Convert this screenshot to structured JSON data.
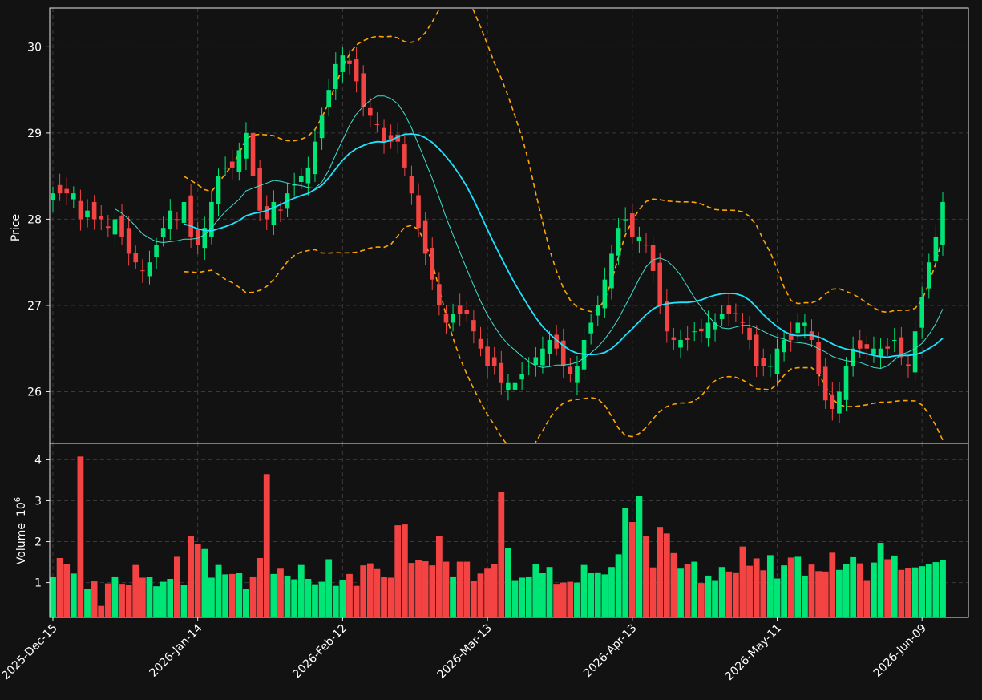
{
  "chart_data": {
    "type": "candlestick",
    "colors": {
      "background": "#121212",
      "up": "#00e676",
      "down": "#f44343",
      "ma_fast": "#40e0d0",
      "ma_slow": "#1ee3ff",
      "bollinger": "#ffa500",
      "grid": "#3a3a3a"
    },
    "price_panel": {
      "ylabel": "Price",
      "ylim": [
        25.4,
        30.45
      ],
      "yticks": [
        26,
        27,
        28,
        29,
        30
      ],
      "ytick_labels": [
        "26",
        "27",
        "28",
        "29",
        "30"
      ]
    },
    "volume_panel": {
      "ylabel": "Volume",
      "ylabel_exponent": "6",
      "ylim": [
        0.15,
        4.4
      ],
      "yticks": [
        1,
        2,
        3,
        4
      ],
      "ytick_labels": [
        "1",
        "2",
        "3",
        "4"
      ]
    },
    "x_ticks": [
      {
        "index": 0,
        "label": "2025-Dec-15"
      },
      {
        "index": 21,
        "label": "2026-Jan-14"
      },
      {
        "index": 42,
        "label": "2026-Feb-12"
      },
      {
        "index": 63,
        "label": "2026-Mar-13"
      },
      {
        "index": 84,
        "label": "2026-Apr-13"
      },
      {
        "index": 105,
        "label": "2026-May-11"
      },
      {
        "index": 126,
        "label": "2026-Jun-09"
      }
    ],
    "n_bars": 130,
    "close": [
      28.3,
      28.3,
      28.3,
      28.3,
      28.0,
      28.1,
      28.0,
      28.0,
      27.9,
      28.0,
      27.8,
      27.6,
      27.5,
      27.4,
      27.5,
      27.7,
      27.9,
      28.1,
      28.0,
      28.2,
      27.8,
      27.7,
      27.9,
      28.2,
      28.5,
      28.6,
      28.6,
      28.8,
      29.0,
      28.5,
      28.1,
      28.0,
      28.2,
      28.1,
      28.3,
      28.4,
      28.5,
      28.6,
      28.9,
      29.2,
      29.5,
      29.8,
      29.9,
      29.8,
      29.6,
      29.3,
      29.2,
      29.1,
      28.9,
      28.9,
      28.9,
      28.6,
      28.3,
      27.9,
      27.6,
      27.3,
      27.0,
      26.8,
      26.9,
      26.9,
      26.9,
      26.7,
      26.5,
      26.3,
      26.3,
      26.1,
      26.1,
      26.1,
      26.2,
      26.3,
      26.4,
      26.5,
      26.6,
      26.5,
      26.3,
      26.2,
      26.3,
      26.6,
      26.8,
      27.0,
      27.3,
      27.6,
      27.9,
      28.0,
      27.8,
      27.8,
      27.7,
      27.4,
      27.0,
      26.7,
      26.6,
      26.6,
      26.6,
      26.7,
      26.7,
      26.8,
      26.8,
      26.9,
      26.9,
      26.9,
      26.8,
      26.6,
      26.3,
      26.3,
      26.3,
      26.5,
      26.6,
      26.6,
      26.8,
      26.8,
      26.6,
      26.2,
      25.9,
      25.8,
      26.0,
      26.3,
      26.5,
      26.5,
      26.5,
      26.5,
      26.5,
      26.5,
      26.6,
      26.4,
      26.3,
      26.7,
      27.1,
      27.5,
      27.8,
      28.2
    ],
    "volume": [
      1.14,
      1.6,
      1.45,
      1.22,
      4.08,
      0.85,
      1.03,
      0.43,
      0.98,
      1.15,
      0.97,
      0.95,
      1.43,
      1.12,
      1.14,
      0.91,
      1.02,
      1.09,
      1.63,
      0.95,
      2.13,
      1.94,
      1.82,
      1.12,
      1.43,
      1.2,
      1.21,
      1.24,
      0.85,
      1.15,
      1.6,
      3.65,
      1.21,
      1.34,
      1.17,
      1.08,
      1.43,
      1.09,
      0.96,
      1.02,
      1.57,
      0.92,
      1.07,
      1.21,
      0.92,
      1.42,
      1.47,
      1.33,
      1.14,
      1.12,
      2.4,
      2.42,
      1.48,
      1.55,
      1.52,
      1.42,
      2.14,
      1.51,
      1.15,
      1.51,
      1.51,
      1.04,
      1.22,
      1.34,
      1.45,
      3.22,
      1.85,
      1.06,
      1.12,
      1.15,
      1.45,
      1.24,
      1.38,
      0.97,
      1.0,
      1.02,
      1.0,
      1.43,
      1.24,
      1.25,
      1.2,
      1.38,
      1.69,
      2.82,
      2.48,
      3.11,
      2.13,
      1.37,
      2.36,
      2.2,
      1.72,
      1.34,
      1.46,
      1.51,
      0.99,
      1.17,
      1.06,
      1.38,
      1.27,
      1.25,
      1.88,
      1.41,
      1.59,
      1.3,
      1.67,
      1.1,
      1.42,
      1.61,
      1.63,
      1.17,
      1.44,
      1.28,
      1.27,
      1.73,
      1.31,
      1.46,
      1.62,
      1.47,
      1.06,
      1.49,
      1.97,
      1.57,
      1.66,
      1.31,
      1.35,
      1.37,
      1.4,
      1.45,
      1.5,
      1.55
    ]
  }
}
